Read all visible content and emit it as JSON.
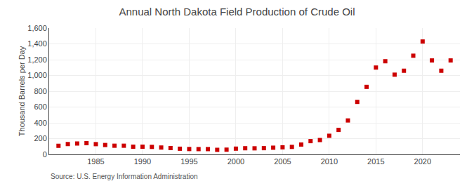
{
  "chart_data": {
    "type": "scatter",
    "title": "Annual North Dakota Field Production of Crude Oil",
    "ylabel": "Thousand Barrels per Day",
    "annotations": [
      "Source: U.S. Energy Information Administration"
    ],
    "x": [
      1981,
      1982,
      1983,
      1984,
      1985,
      1986,
      1987,
      1988,
      1989,
      1990,
      1991,
      1992,
      1993,
      1994,
      1995,
      1996,
      1997,
      1998,
      1999,
      2000,
      2001,
      2002,
      2003,
      2004,
      2005,
      2006,
      2007,
      2008,
      2009,
      2010,
      2011,
      2012,
      2013,
      2014,
      2015,
      2016,
      2017,
      2018,
      2019,
      2020,
      2021,
      2022,
      2023
    ],
    "values": [
      109,
      131,
      138,
      142,
      130,
      119,
      110,
      110,
      98,
      98,
      95,
      87,
      80,
      72,
      68,
      67,
      67,
      58,
      60,
      73,
      78,
      77,
      79,
      85,
      90,
      95,
      125,
      168,
      182,
      236,
      310,
      430,
      665,
      855,
      1100,
      1180,
      1010,
      1060,
      1250,
      1430,
      1190,
      1060,
      1190
    ],
    "color": "#cc0000",
    "marker": "square",
    "xlim": [
      1980,
      2024
    ],
    "xticks": [
      1985,
      1990,
      1995,
      2000,
      2005,
      2010,
      2015,
      2020
    ],
    "ylim": [
      0,
      1600
    ],
    "yticks": [
      0,
      200,
      400,
      600,
      800,
      {
        "value": 1000,
        "label": "1,000"
      },
      {
        "value": 1200,
        "label": "1,200"
      },
      {
        "value": 1400,
        "label": "1,400"
      },
      {
        "value": 1600,
        "label": "1,600"
      }
    ],
    "grid": true
  }
}
